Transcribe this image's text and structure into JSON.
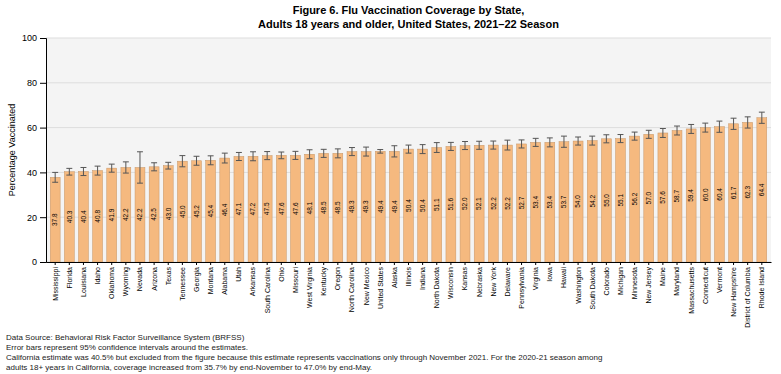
{
  "chart_data": {
    "type": "bar",
    "title": "Figure 6. Flu Vaccination Coverage by State,",
    "subtitle": "Adults 18 years and older, United States, 2021–22 Season",
    "y_label": "Percentage Vaccinated",
    "categories": [
      "Mississippi",
      "Florida",
      "Louisiana",
      "Idaho",
      "Oklahoma",
      "Wyoming",
      "Nevada",
      "Arizona",
      "Texas",
      "Tennessee",
      "Georgia",
      "Montana",
      "Alabama",
      "Utah",
      "Arkansas",
      "South Carolina",
      "Ohio",
      "Missouri",
      "West Virginia",
      "Kentucky",
      "Oregon",
      "North Carolina",
      "New Mexico",
      "United States",
      "Alaska",
      "Illinois",
      "Indiana",
      "North Dakota",
      "Wisconsin",
      "Kansas",
      "Nebraska",
      "New York",
      "Delaware",
      "Pennsylvania",
      "Virginia",
      "Iowa",
      "Hawaii",
      "Washington",
      "South Dakota",
      "Colorado",
      "Michigan",
      "Minnesota",
      "New Jersey",
      "Maine",
      "Maryland",
      "Massachusetts",
      "Connecticut",
      "Vermont",
      "New Hampshire",
      "District of Columbia",
      "Rhode Island"
    ],
    "values": [
      37.8,
      40.3,
      40.4,
      40.8,
      41.9,
      42.2,
      42.2,
      42.5,
      43.0,
      45.0,
      45.2,
      45.4,
      46.4,
      47.1,
      47.2,
      47.5,
      47.6,
      47.6,
      48.1,
      48.5,
      48.5,
      49.3,
      49.3,
      49.4,
      49.4,
      50.4,
      50.4,
      51.1,
      51.6,
      52.0,
      52.1,
      52.2,
      52.2,
      52.7,
      53.4,
      53.4,
      53.7,
      54.0,
      54.2,
      55.0,
      55.1,
      56.2,
      57.0,
      57.6,
      58.7,
      59.4,
      60.0,
      60.4,
      61.7,
      62.3,
      64.4
    ],
    "value_labels": [
      "37.8",
      "40.3",
      "40.4",
      "40.8",
      "41.9",
      "42.2",
      "42.2",
      "42.5",
      "43.0",
      "45.0",
      "45.2",
      "45.4",
      "46.4",
      "47.1",
      "47.2",
      "47.5",
      "47.6",
      "47.6",
      "48.1",
      "48.5",
      "48.5",
      "49.3",
      "49.3",
      "49.4",
      "49.4",
      "50.4",
      "50.4",
      "51.1",
      "51.6",
      "52.0",
      "52.1",
      "52.2",
      "52.2",
      "52.7",
      "53.4",
      "53.4",
      "53.7",
      "54.0",
      "54.2",
      "55.0",
      "55.1",
      "56.2",
      "57.0",
      "57.6",
      "58.7",
      "59.4",
      "60.0",
      "60.4",
      "61.7",
      "62.3",
      "64.4"
    ],
    "errors": [
      2.2,
      1.5,
      1.8,
      2.0,
      1.8,
      2.5,
      7.0,
      1.8,
      1.5,
      2.5,
      2.0,
      2.0,
      2.2,
      1.8,
      2.0,
      1.8,
      1.5,
      1.8,
      2.0,
      1.8,
      2.0,
      1.8,
      2.0,
      0.8,
      2.5,
      1.8,
      2.0,
      2.2,
      1.8,
      1.8,
      1.8,
      1.8,
      2.2,
      1.8,
      1.8,
      2.0,
      2.5,
      1.8,
      2.0,
      1.8,
      1.8,
      1.8,
      1.8,
      2.0,
      2.0,
      2.0,
      2.0,
      2.5,
      2.5,
      2.5,
      2.5
    ],
    "color": "#F5B97F",
    "ylim": [
      0,
      100
    ],
    "yticks": [
      0,
      20,
      40,
      60,
      80,
      100
    ],
    "grid": true,
    "data_labels": true,
    "annotations": [
      "Data Source: Behavioral Risk Factor Surveillance System (BRFSS)",
      "Error bars represent 95% confidence intervals around the estimates.",
      "California estimate was 40.5% but excluded from the figure because this estimate represents vaccinations only through November 2021. For the 2020-21 season among",
      "adults 18+ years in California, coverage increased from 35.7% by end-November to 47.0% by end-May."
    ]
  }
}
